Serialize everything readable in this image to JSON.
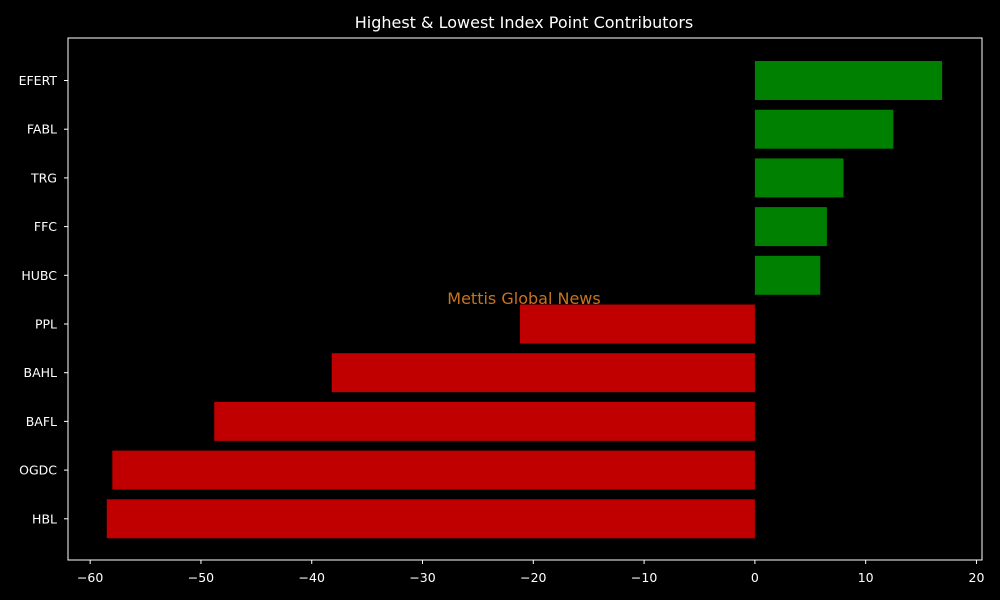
{
  "chart_data": {
    "type": "bar",
    "orientation": "horizontal",
    "title": "Highest & Lowest Index Point Contributors",
    "xlabel": "",
    "ylabel": "",
    "categories": [
      "EFERT",
      "FABL",
      "TRG",
      "FFC",
      "HUBC",
      "PPL",
      "BAHL",
      "BAFL",
      "OGDC",
      "HBL"
    ],
    "values": [
      16.9,
      12.5,
      8.0,
      6.5,
      5.9,
      -21.2,
      -38.2,
      -48.8,
      -58.0,
      -58.5
    ],
    "xlim": [
      -62,
      20.5
    ],
    "xticks": [
      -60,
      -50,
      -40,
      -30,
      -20,
      -10,
      0,
      10,
      20
    ],
    "xtick_labels": [
      "−60",
      "−50",
      "−40",
      "−30",
      "−20",
      "−10",
      "0",
      "10",
      "20"
    ],
    "grid": false,
    "background": "#000000",
    "colors": {
      "positive": "#008000",
      "negative": "#c00000",
      "axis": "#ffffff"
    }
  },
  "watermark": {
    "text": "Mettis Global News",
    "color": "#c8731e"
  }
}
